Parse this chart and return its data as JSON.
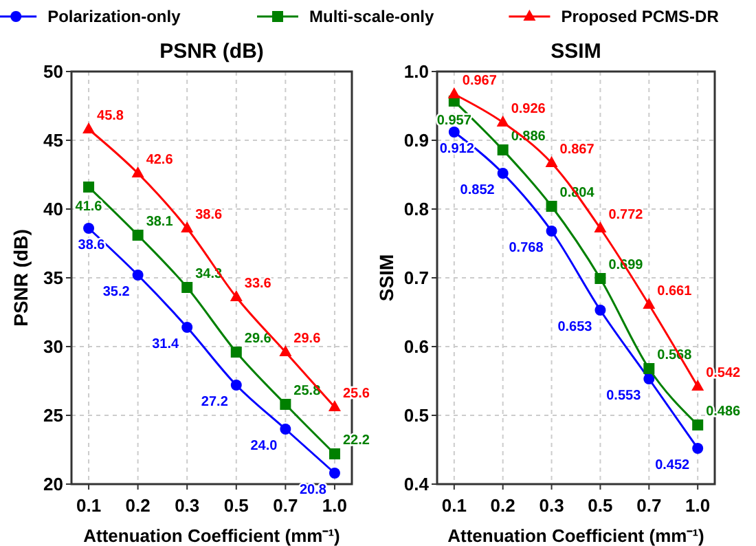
{
  "chart_data": [
    {
      "type": "line",
      "title": "PSNR (dB)",
      "xlabel": "Attenuation Coefficient (mm⁻¹)",
      "ylabel": "PSNR (dB)",
      "categories": [
        "0.1",
        "0.2",
        "0.3",
        "0.5",
        "0.7",
        "1.0"
      ],
      "series": [
        {
          "name": "Polarization-only",
          "color": "#0000ff",
          "marker": "circle",
          "values": [
            38.6,
            35.2,
            31.4,
            27.2,
            24.0,
            20.8
          ],
          "value_labels": [
            "38.6",
            "35.2",
            "31.4",
            "27.2",
            "24.0",
            "20.8"
          ]
        },
        {
          "name": "Multi-scale-only",
          "color": "#008000",
          "marker": "square",
          "values": [
            41.6,
            38.1,
            34.3,
            29.6,
            25.8,
            22.2
          ],
          "value_labels": [
            "41.6",
            "38.1",
            "34.3",
            "29.6",
            "25.8",
            "22.2"
          ]
        },
        {
          "name": "Proposed PCMS-DR",
          "color": "#ff0000",
          "marker": "triangle",
          "values": [
            45.8,
            42.6,
            38.6,
            33.6,
            29.6,
            25.6
          ],
          "value_labels": [
            "45.8",
            "42.6",
            "38.6",
            "33.6",
            "29.6",
            "25.6"
          ]
        }
      ],
      "ylim": [
        20,
        50
      ],
      "yticks": [
        20,
        25,
        30,
        35,
        40,
        45,
        50
      ],
      "grid": true,
      "legend": "top",
      "line_style": "solid"
    },
    {
      "type": "line",
      "title": "SSIM",
      "xlabel": "Attenuation Coefficient (mm⁻¹)",
      "ylabel": "SSIM",
      "categories": [
        "0.1",
        "0.2",
        "0.3",
        "0.5",
        "0.7",
        "1.0"
      ],
      "series": [
        {
          "color": "#0000ff",
          "marker": "circle",
          "values": [
            0.912,
            0.852,
            0.768,
            0.653,
            0.553,
            0.452
          ],
          "value_labels": [
            "0.912",
            "0.852",
            "0.768",
            "0.653",
            "0.553",
            "0.452"
          ]
        },
        {
          "color": "#008000",
          "marker": "square",
          "values": [
            0.957,
            0.886,
            0.804,
            0.699,
            0.568,
            0.486
          ],
          "value_labels": [
            "0.957",
            "0.886",
            "0.804",
            "0.699",
            "0.568",
            "0.486"
          ]
        },
        {
          "color": "#ff0000",
          "marker": "triangle",
          "values": [
            0.967,
            0.926,
            0.867,
            0.772,
            0.661,
            0.542
          ],
          "value_labels": [
            "0.967",
            "0.926",
            "0.867",
            "0.772",
            "0.661",
            "0.542"
          ]
        }
      ],
      "ylim": [
        0.4,
        1.0
      ],
      "yticks": [
        {
          "value": 0.4,
          "label": "0.4"
        },
        {
          "value": 0.5,
          "label": "0.5"
        },
        {
          "value": 0.6,
          "label": "0.6"
        },
        {
          "value": 0.7,
          "label": "0.7"
        },
        {
          "value": 0.8,
          "label": "0.8"
        },
        {
          "value": 0.9,
          "label": "0.9"
        },
        {
          "value": 1.0,
          "label": "1.0"
        }
      ],
      "grid": true,
      "line_style": "solid"
    }
  ]
}
